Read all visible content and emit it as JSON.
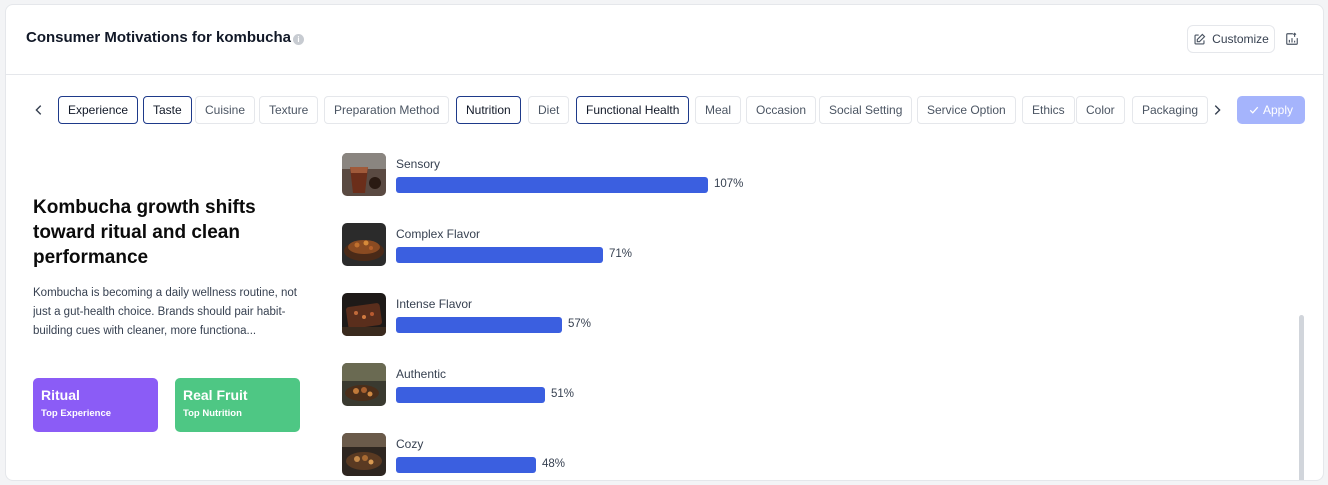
{
  "header": {
    "title": "Consumer Motivations for kombucha",
    "customize_label": "Customize"
  },
  "tabs": [
    "Experience",
    "Taste",
    "Cuisine",
    "Texture",
    "Preparation Method",
    "Nutrition",
    "Diet",
    "Functional Health",
    "Meal",
    "Occasion",
    "Social Setting",
    "Service Option",
    "Ethics",
    "Color",
    "Packaging"
  ],
  "selected_tabs": [
    "Experience",
    "Taste",
    "Nutrition",
    "Functional Health"
  ],
  "apply_label": "Apply",
  "insight": {
    "headline": "Kombucha growth shifts toward ritual and clean performance",
    "description": "Kombucha is becoming a daily wellness routine, not just a gut-health choice. Brands should pair habit-building cues with cleaner, more functiona..."
  },
  "stats": [
    {
      "title": "Ritual",
      "subtitle": "Top Experience",
      "color": "#8b5cf6"
    },
    {
      "title": "Real Fruit",
      "subtitle": "Top Nutrition",
      "color": "#4ec784"
    }
  ],
  "motivations": [
    {
      "label": "Sensory",
      "value": 107,
      "value_text": "107%"
    },
    {
      "label": "Complex Flavor",
      "value": 71,
      "value_text": "71%"
    },
    {
      "label": "Intense Flavor",
      "value": 57,
      "value_text": "57%"
    },
    {
      "label": "Authentic",
      "value": 51,
      "value_text": "51%"
    },
    {
      "label": "Cozy",
      "value": 48,
      "value_text": "48%"
    }
  ],
  "colors": {
    "bar": "#3b5fe0",
    "accent_selected": "#1e3a8a",
    "apply": "#a5b4fc"
  }
}
